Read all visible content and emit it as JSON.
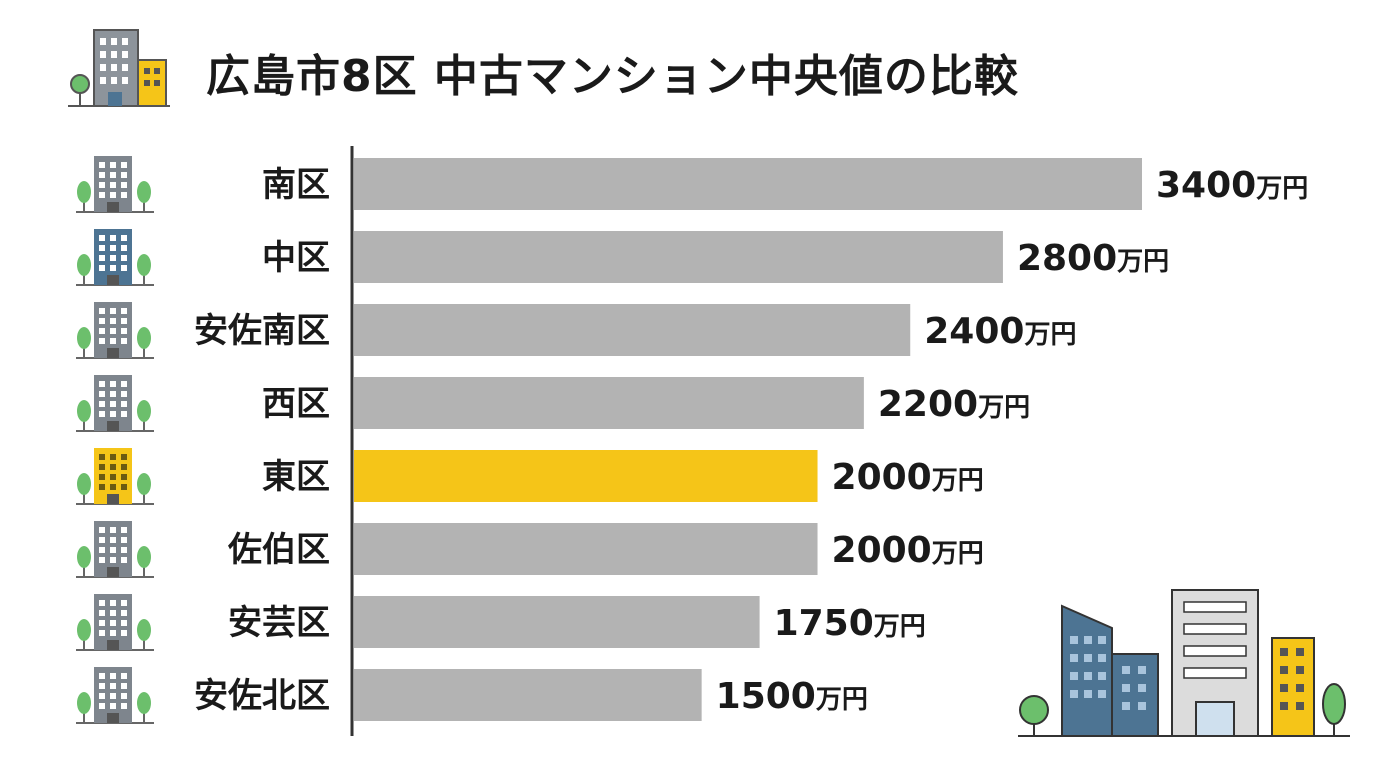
{
  "title": "広島市8区 中古マンション中央値の比較",
  "colors": {
    "bar_default": "#b3b3b3",
    "bar_highlight": "#f5c518",
    "axis": "#333333",
    "text": "#1a1a1a",
    "icon_gray": "#7e858d",
    "icon_blue": "#4d7493",
    "icon_yellow": "#f5c518",
    "tree_green": "#6cbf6c"
  },
  "icons": {
    "title_icon": "buildings-icon",
    "scene_icon": "city-skyline-icon",
    "row_icon": "apartment-building-icon"
  },
  "chart_data": {
    "type": "bar",
    "orientation": "horizontal",
    "title": "広島市8区 中古マンション中央値の比較",
    "xlabel": "",
    "ylabel": "",
    "unit": "万円",
    "xlim": [
      0,
      3400
    ],
    "grid": false,
    "legend": "none",
    "highlight": "東区",
    "categories": [
      "南区",
      "中区",
      "安佐南区",
      "西区",
      "東区",
      "佐伯区",
      "安芸区",
      "安佐北区"
    ],
    "values": [
      3400,
      2800,
      2400,
      2200,
      2000,
      2000,
      1750,
      1500
    ],
    "labels": [
      "3400万円",
      "2800万円",
      "2400万円",
      "2200万円",
      "2000万円",
      "2000万円",
      "1750万円",
      "1500万円"
    ],
    "icon_colors": [
      "gray",
      "blue",
      "gray",
      "gray",
      "yellow",
      "gray",
      "gray",
      "gray"
    ]
  }
}
